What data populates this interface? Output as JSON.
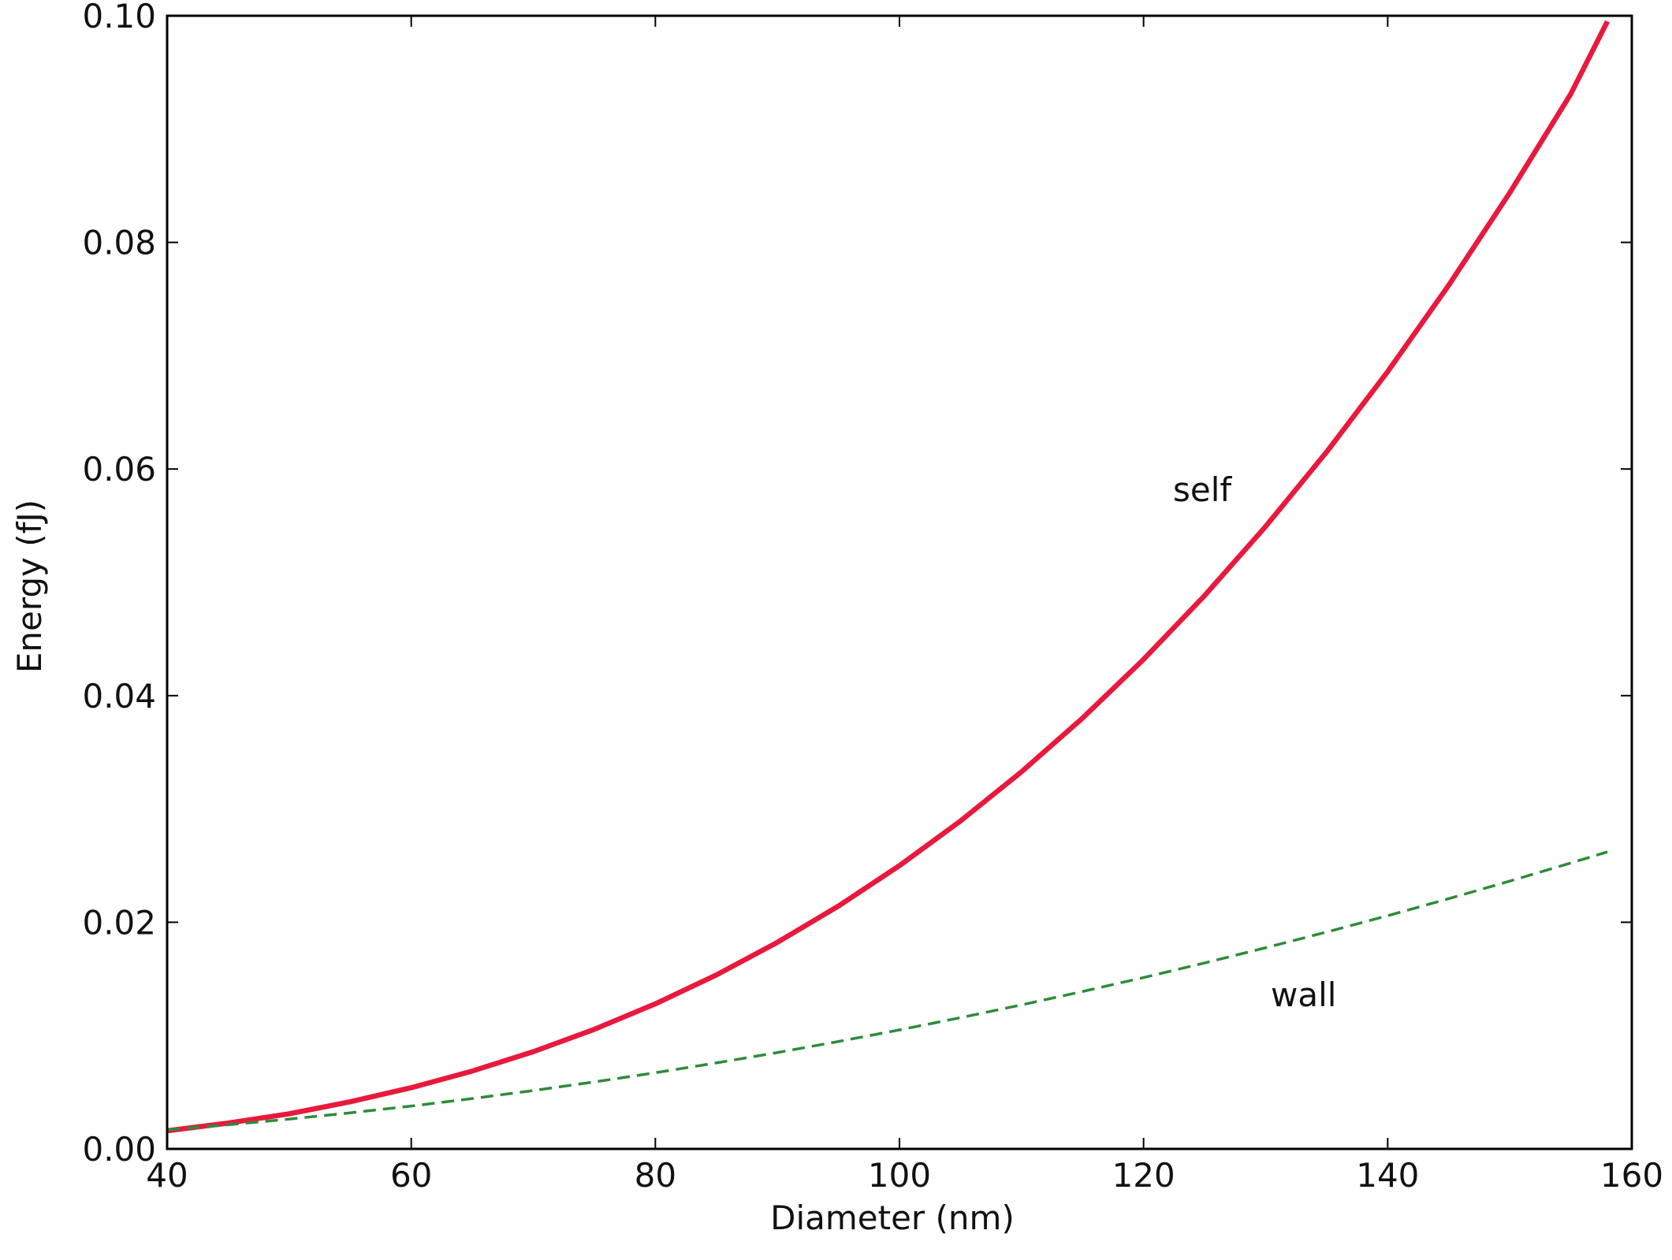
{
  "chart_data": {
    "type": "line",
    "x_label": "Diameter (nm)",
    "y_label": "Energy (fJ)",
    "x": [
      40,
      45,
      50,
      55,
      60,
      65,
      70,
      75,
      80,
      85,
      90,
      95,
      100,
      105,
      110,
      115,
      120,
      125,
      130,
      135,
      140,
      145,
      150,
      155,
      158
    ],
    "series": [
      {
        "name": "self",
        "color": "#e8193c",
        "style": "solid",
        "values": [
          0.0016,
          0.00228,
          0.0031,
          0.00416,
          0.0054,
          0.00687,
          0.00858,
          0.01055,
          0.0128,
          0.01535,
          0.01823,
          0.02143,
          0.025,
          0.02894,
          0.03328,
          0.03802,
          0.0432,
          0.04883,
          0.05493,
          0.06151,
          0.0686,
          0.07622,
          0.08438,
          0.0931,
          0.0995
        ]
      },
      {
        "name": "wall",
        "color": "#2e8b3a",
        "style": "dashed",
        "values": [
          0.00168,
          0.00213,
          0.00263,
          0.00318,
          0.00378,
          0.00444,
          0.00515,
          0.00591,
          0.00672,
          0.00759,
          0.0085,
          0.00948,
          0.0105,
          0.01158,
          0.01271,
          0.01389,
          0.01512,
          0.01641,
          0.01775,
          0.01914,
          0.02058,
          0.02208,
          0.02363,
          0.02523,
          0.02621
        ]
      }
    ],
    "xlim": [
      40,
      160
    ],
    "xticks": [
      40,
      60,
      80,
      100,
      120,
      140,
      160
    ],
    "ylim": [
      0,
      0.1
    ],
    "yticks": [
      {
        "value": 0,
        "label": "0.00"
      },
      {
        "value": 0.02,
        "label": "0.02"
      },
      {
        "value": 0.04,
        "label": "0.04"
      },
      {
        "value": 0.06,
        "label": "0.06"
      },
      {
        "value": 0.08,
        "label": "0.08"
      },
      {
        "value": 0.1,
        "label": "0.10"
      }
    ],
    "grid": false
  }
}
